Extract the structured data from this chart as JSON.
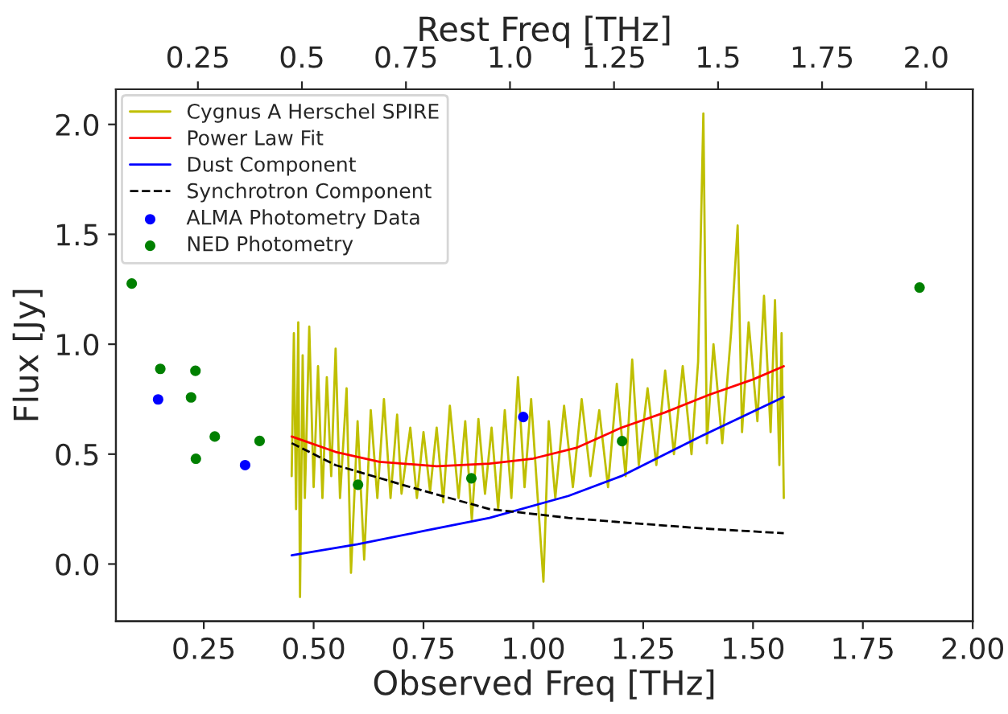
{
  "chart_data": {
    "type": "line",
    "xlabel": "Observed Freq [THz]",
    "ylabel": "Flux [Jy]",
    "x2label": "Rest Freq [THz]",
    "xlim": [
      0.05,
      2.0
    ],
    "xticks": [
      0.25,
      {
        "value": 0.5,
        "label": "0.50"
      },
      0.75,
      {
        "value": 1.0,
        "label": "1.00"
      },
      1.25,
      {
        "value": 1.5,
        "label": "1.50"
      },
      1.75,
      {
        "value": 2.0,
        "label": "2.00"
      }
    ],
    "x2lim": [
      0.053,
      2.112
    ],
    "x2ticks": [
      0.25,
      0.5,
      0.75,
      {
        "value": 1.0,
        "label": "1.0"
      },
      1.25,
      1.5,
      1.75,
      {
        "value": 2.0,
        "label": "2.0"
      }
    ],
    "ylim": [
      -0.26,
      2.16
    ],
    "yticks": [
      {
        "value": 0.0,
        "label": "0.0"
      },
      0.5,
      {
        "value": 1.0,
        "label": "1.0"
      },
      1.5,
      {
        "value": 2.0,
        "label": "2.0"
      }
    ],
    "grid": false,
    "legend": "top left",
    "series": [
      {
        "name": "Cygnus A Herschel SPIRE",
        "color": "#bfbf00",
        "line_style": "solid",
        "marker": "none",
        "x": [
          0.45,
          0.455,
          0.46,
          0.465,
          0.469,
          0.475,
          0.48,
          0.49,
          0.5,
          0.51,
          0.52,
          0.53,
          0.54,
          0.55,
          0.56,
          0.575,
          0.585,
          0.6,
          0.615,
          0.63,
          0.645,
          0.66,
          0.675,
          0.69,
          0.7,
          0.72,
          0.735,
          0.75,
          0.765,
          0.78,
          0.795,
          0.81,
          0.83,
          0.845,
          0.86,
          0.875,
          0.89,
          0.905,
          0.92,
          0.935,
          0.95,
          0.965,
          0.98,
          0.995,
          1.01,
          1.023,
          1.035,
          1.05,
          1.07,
          1.09,
          1.11,
          1.13,
          1.15,
          1.17,
          1.19,
          1.21,
          1.225,
          1.24,
          1.26,
          1.28,
          1.3,
          1.32,
          1.34,
          1.36,
          1.375,
          1.387,
          1.395,
          1.41,
          1.43,
          1.45,
          1.465,
          1.475,
          1.49,
          1.51,
          1.525,
          1.54,
          1.55,
          1.56,
          1.565,
          1.57
        ],
        "values": [
          0.4,
          1.05,
          0.25,
          1.1,
          -0.15,
          0.95,
          0.3,
          1.08,
          0.35,
          0.9,
          0.3,
          0.85,
          0.4,
          0.98,
          0.3,
          0.8,
          -0.04,
          0.65,
          0.02,
          0.7,
          0.3,
          0.75,
          0.3,
          0.68,
          0.32,
          0.62,
          0.3,
          0.6,
          0.33,
          0.62,
          0.28,
          0.72,
          0.3,
          0.65,
          0.2,
          0.66,
          0.32,
          0.62,
          0.25,
          0.7,
          0.3,
          0.85,
          0.35,
          0.75,
          0.3,
          -0.08,
          0.65,
          0.3,
          0.72,
          0.35,
          0.75,
          0.4,
          0.7,
          0.35,
          0.82,
          0.4,
          0.93,
          0.45,
          0.8,
          0.45,
          0.88,
          0.5,
          0.9,
          0.5,
          0.92,
          2.05,
          0.55,
          1.0,
          0.55,
          1.05,
          1.54,
          0.6,
          1.1,
          0.65,
          1.22,
          0.6,
          1.2,
          0.45,
          1.05,
          0.3
        ]
      },
      {
        "name": "Power Law Fit",
        "color": "#ff0000",
        "line_style": "solid",
        "marker": "none",
        "x": [
          0.45,
          0.55,
          0.65,
          0.78,
          0.9,
          1.0,
          1.1,
          1.2,
          1.3,
          1.4,
          1.5,
          1.57
        ],
        "values": [
          0.58,
          0.51,
          0.465,
          0.445,
          0.457,
          0.48,
          0.53,
          0.62,
          0.69,
          0.77,
          0.84,
          0.9
        ]
      },
      {
        "name": "Dust Component",
        "color": "#0000ff",
        "line_style": "solid",
        "marker": "none",
        "x": [
          0.45,
          0.6,
          0.75,
          0.9,
          1.08,
          1.2,
          1.38,
          1.57
        ],
        "values": [
          0.04,
          0.09,
          0.15,
          0.21,
          0.31,
          0.4,
          0.58,
          0.76
        ]
      },
      {
        "name": "Synchrotron Component",
        "color": "#000000",
        "line_style": "dashed",
        "marker": "none",
        "x": [
          0.45,
          0.55,
          0.72,
          0.9,
          1.08,
          1.2,
          1.4,
          1.57
        ],
        "values": [
          0.55,
          0.45,
          0.35,
          0.25,
          0.21,
          0.19,
          0.16,
          0.14
        ]
      },
      {
        "name": "ALMA Photometry Data",
        "type": "scatter",
        "color": "#0000ff",
        "marker": "circle",
        "x": [
          0.146,
          0.344,
          0.977
        ],
        "values": [
          0.749,
          0.45,
          0.669
        ]
      },
      {
        "name": "NED Photometry",
        "type": "scatter",
        "color": "#008000",
        "marker": "circle",
        "x": [
          0.086,
          0.151,
          0.231,
          0.221,
          0.275,
          0.232,
          0.377,
          0.601,
          0.859,
          1.202,
          1.879
        ],
        "values": [
          1.276,
          0.888,
          0.879,
          0.758,
          0.58,
          0.479,
          0.56,
          0.361,
          0.39,
          0.559,
          1.258
        ]
      }
    ]
  }
}
